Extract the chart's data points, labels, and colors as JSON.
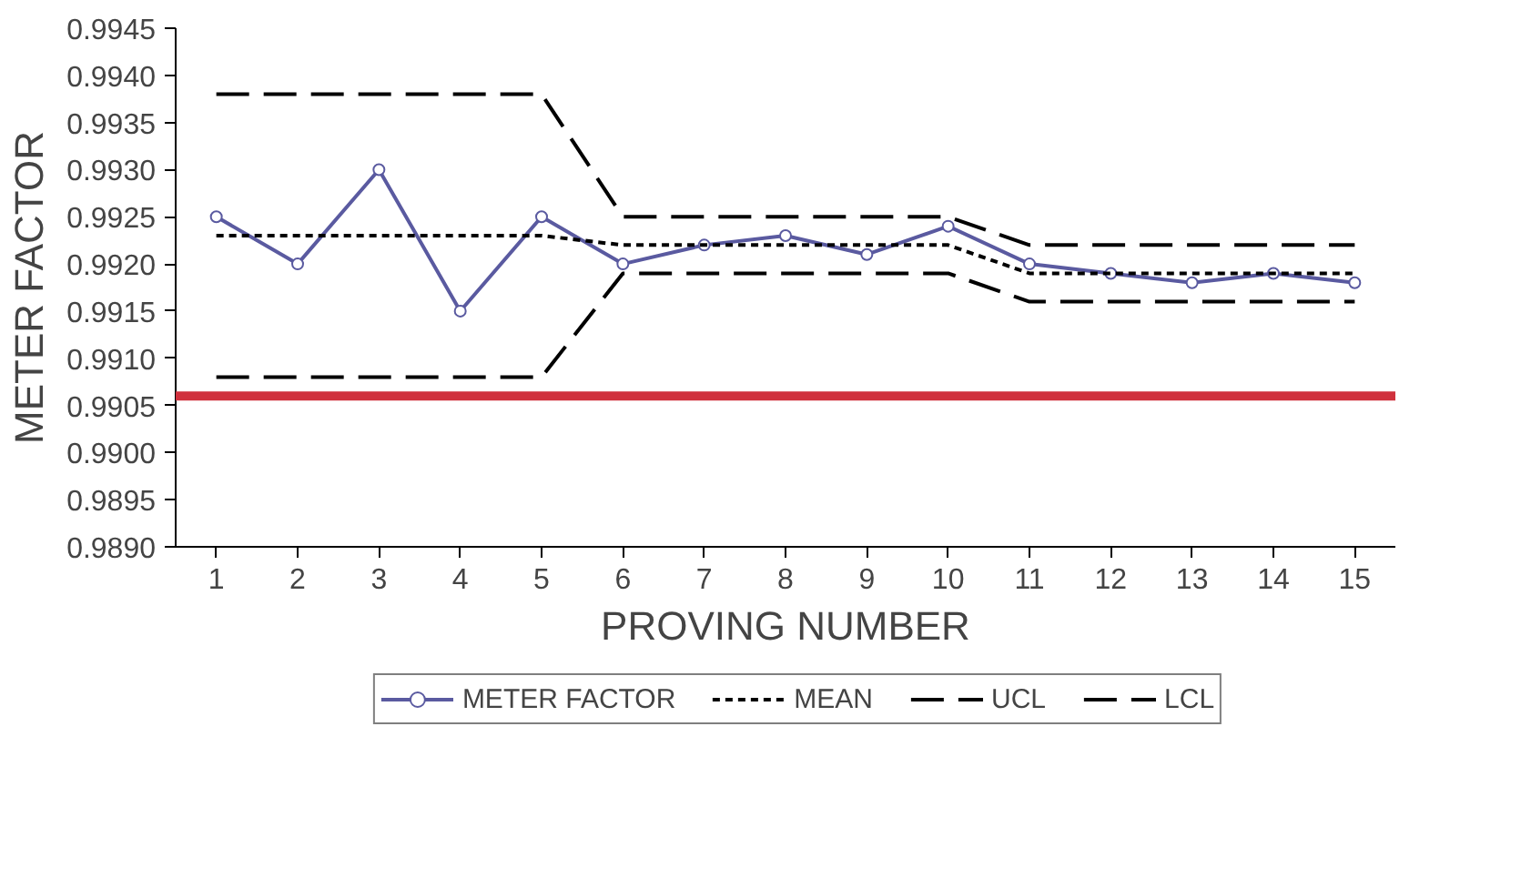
{
  "chart_data": {
    "type": "line",
    "xlabel": "PROVING NUMBER",
    "ylabel": "METER FACTOR",
    "x": [
      1,
      2,
      3,
      4,
      5,
      6,
      7,
      8,
      9,
      10,
      11,
      12,
      13,
      14,
      15
    ],
    "series": [
      {
        "name": "METER FACTOR",
        "color": "#5a5aa0",
        "marker": "circle",
        "line_style": "solid",
        "values": [
          0.9925,
          0.992,
          0.993,
          0.9915,
          0.9925,
          0.992,
          0.9922,
          0.9923,
          0.9921,
          0.9924,
          0.992,
          0.9919,
          0.9918,
          0.9919,
          0.9918
        ]
      },
      {
        "name": "MEAN",
        "color": "#000000",
        "marker": "none",
        "line_style": "dotted",
        "values": [
          0.9923,
          0.9923,
          0.9923,
          0.9923,
          0.9923,
          0.9922,
          0.9922,
          0.9922,
          0.9922,
          0.9922,
          0.9919,
          0.9919,
          0.9919,
          0.9919,
          0.9919
        ]
      },
      {
        "name": "UCL",
        "color": "#000000",
        "marker": "none",
        "line_style": "dashed",
        "values": [
          0.9938,
          0.9938,
          0.9938,
          0.9938,
          0.9938,
          0.9925,
          0.9925,
          0.9925,
          0.9925,
          0.9925,
          0.9922,
          0.9922,
          0.9922,
          0.9922,
          0.9922
        ]
      },
      {
        "name": "LCL",
        "color": "#000000",
        "marker": "none",
        "line_style": "dashed",
        "values": [
          0.9908,
          0.9908,
          0.9908,
          0.9908,
          0.9908,
          0.9919,
          0.9919,
          0.9919,
          0.9919,
          0.9919,
          0.9916,
          0.9916,
          0.9916,
          0.9916,
          0.9916
        ]
      }
    ],
    "xlim": [
      0.5,
      15.5
    ],
    "xticks": [
      1,
      2,
      3,
      4,
      5,
      6,
      7,
      8,
      9,
      10,
      11,
      12,
      13,
      14,
      15
    ],
    "ylim": [
      0.989,
      0.9945
    ],
    "yticks": [
      {
        "value": 0.989,
        "label": "0.9890"
      },
      {
        "value": 0.9895,
        "label": "0.9895"
      },
      {
        "value": 0.99,
        "label": "0.9900"
      },
      {
        "value": 0.9905,
        "label": "0.9905"
      },
      {
        "value": 0.991,
        "label": "0.9910"
      },
      {
        "value": 0.9915,
        "label": "0.9915"
      },
      {
        "value": 0.992,
        "label": "0.9920"
      },
      {
        "value": 0.9925,
        "label": "0.9925"
      },
      {
        "value": 0.993,
        "label": "0.9930"
      },
      {
        "value": 0.9935,
        "label": "0.9935"
      },
      {
        "value": 0.994,
        "label": "0.9940"
      },
      {
        "value": 0.9945,
        "label": "0.9945"
      }
    ],
    "ref_lines": [
      {
        "axis": "y",
        "value": 0.9906,
        "color": "#d0313d"
      }
    ],
    "grid": false,
    "legend": "bottom"
  }
}
